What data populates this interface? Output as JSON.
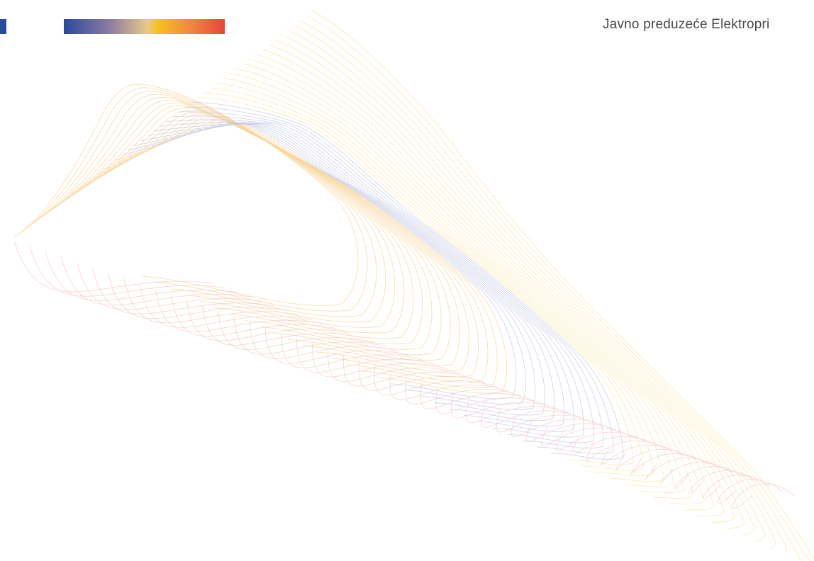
{
  "header": {
    "company_name": "Javno preduzeće Elektropri"
  },
  "brand": {
    "tab_color": "#2a4a9c",
    "gradient_colors": [
      "#2a4a9c",
      "#8a7aa0",
      "#e9c98a",
      "#f6c21c",
      "#f08a3c",
      "#e8453a"
    ]
  },
  "artwork": {
    "icon": "line-wave-art",
    "line_colors": [
      "#f4c9c6",
      "#f7d59a",
      "#f9e6a6",
      "#c7c9e6"
    ]
  }
}
